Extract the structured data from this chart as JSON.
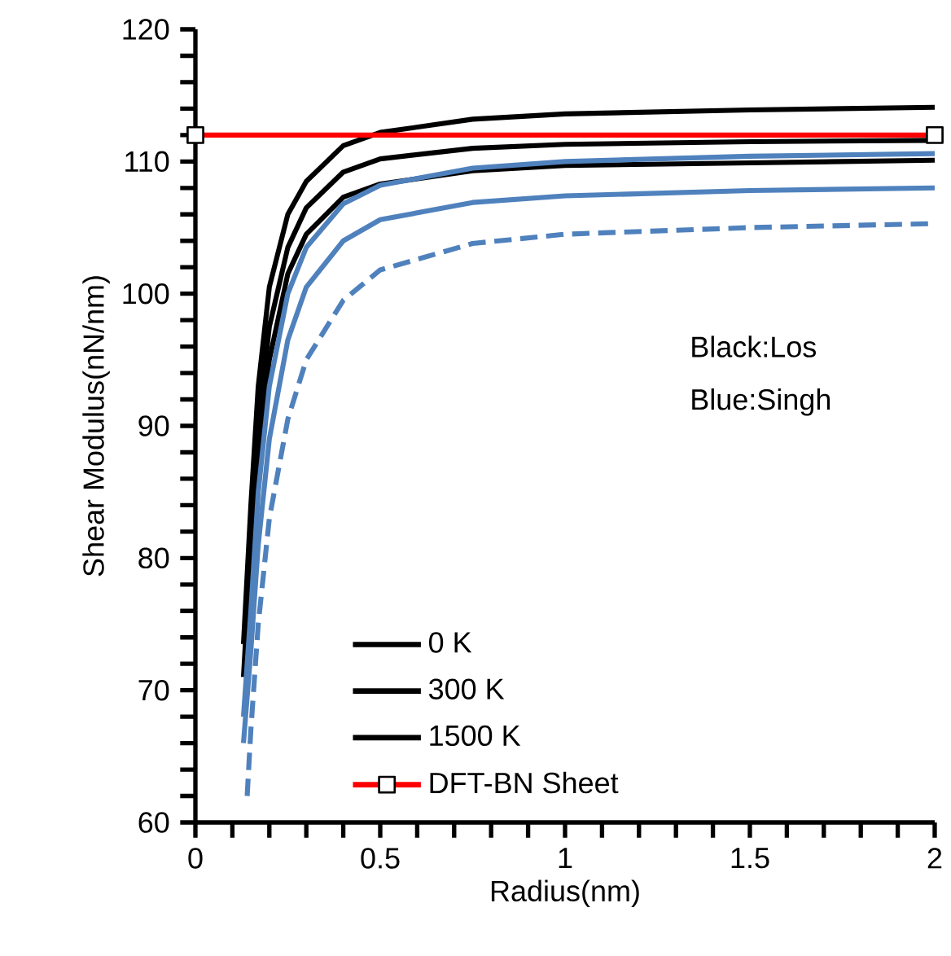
{
  "chart_data": {
    "type": "line",
    "xlabel": "Radius(nm)",
    "ylabel": "Shear Modulus(nN/nm)",
    "xlim": [
      0,
      2
    ],
    "ylim": [
      60,
      120
    ],
    "xticks": [
      0,
      {
        "value": 0.1,
        "label": null
      },
      {
        "value": 0.2,
        "label": null
      },
      {
        "value": 0.3,
        "label": null
      },
      {
        "value": 0.4,
        "label": null
      },
      0.5,
      {
        "value": 0.6,
        "label": null
      },
      {
        "value": 0.7,
        "label": null
      },
      {
        "value": 0.8,
        "label": null
      },
      {
        "value": 0.9,
        "label": null
      },
      1,
      {
        "value": 1.1,
        "label": null
      },
      {
        "value": 1.2,
        "label": null
      },
      {
        "value": 1.3,
        "label": null
      },
      {
        "value": 1.4,
        "label": null
      },
      1.5,
      {
        "value": 1.6,
        "label": null
      },
      {
        "value": 1.7,
        "label": null
      },
      {
        "value": 1.8,
        "label": null
      },
      {
        "value": 1.9,
        "label": null
      },
      2
    ],
    "yticks": [
      60,
      {
        "value": 62,
        "label": null
      },
      {
        "value": 64,
        "label": null
      },
      {
        "value": 66,
        "label": null
      },
      {
        "value": 68,
        "label": null
      },
      70,
      {
        "value": 72,
        "label": null
      },
      {
        "value": 74,
        "label": null
      },
      {
        "value": 76,
        "label": null
      },
      {
        "value": 78,
        "label": null
      },
      80,
      {
        "value": 82,
        "label": null
      },
      {
        "value": 84,
        "label": null
      },
      {
        "value": 86,
        "label": null
      },
      {
        "value": 88,
        "label": null
      },
      90,
      {
        "value": 92,
        "label": null
      },
      {
        "value": 94,
        "label": null
      },
      {
        "value": 96,
        "label": null
      },
      {
        "value": 98,
        "label": null
      },
      100,
      {
        "value": 102,
        "label": null
      },
      {
        "value": 104,
        "label": null
      },
      {
        "value": 106,
        "label": null
      },
      {
        "value": 108,
        "label": null
      },
      110,
      {
        "value": 112,
        "label": null
      },
      {
        "value": 114,
        "label": null
      },
      {
        "value": 116,
        "label": null
      },
      {
        "value": 118,
        "label": null
      },
      120
    ],
    "grid": false,
    "legend": "bottom left",
    "annotations": [
      "Black:Los",
      "Blue:Singh"
    ],
    "series": [
      {
        "name": "0 K",
        "color": "#000000",
        "x": [
          0.13,
          0.15,
          0.17,
          0.2,
          0.25,
          0.3,
          0.4,
          0.5,
          0.75,
          1,
          1.5,
          2
        ],
        "values": [
          73.5,
          84,
          93,
          100.5,
          106,
          108.5,
          111.2,
          112.2,
          113.2,
          113.6,
          113.9,
          114.1
        ]
      },
      {
        "name": "300 K",
        "color": "#000000",
        "x": [
          0.13,
          0.15,
          0.17,
          0.2,
          0.25,
          0.3,
          0.4,
          0.5,
          0.75,
          1,
          1.5,
          2
        ],
        "values": [
          71,
          81,
          90,
          97.5,
          103.5,
          106.5,
          109.2,
          110.2,
          111,
          111.3,
          111.5,
          111.6
        ]
      },
      {
        "name": "1500 K",
        "color": "#000000",
        "x": [
          0.15,
          0.17,
          0.2,
          0.25,
          0.3,
          0.4,
          0.5,
          0.75,
          1,
          1.5,
          2
        ],
        "values": [
          78,
          87,
          95,
          101.5,
          104.5,
          107.3,
          108.3,
          109.3,
          109.7,
          109.9,
          110.1
        ]
      },
      {
        "name": "DFT-BN Sheet",
        "color": "#ff0000",
        "marker": "square",
        "x": [
          0,
          2
        ],
        "values": [
          112,
          112
        ]
      },
      {
        "color": "#4f81bd",
        "x": [
          0.13,
          0.15,
          0.17,
          0.2,
          0.25,
          0.3,
          0.4,
          0.5,
          0.75,
          1,
          1.5,
          2
        ],
        "values": [
          68,
          76,
          85,
          93,
          100,
          103.5,
          106.8,
          108.2,
          109.5,
          110,
          110.4,
          110.6
        ]
      },
      {
        "color": "#4f81bd",
        "x": [
          0.13,
          0.15,
          0.17,
          0.2,
          0.25,
          0.3,
          0.4,
          0.5,
          0.75,
          1,
          1.5,
          2
        ],
        "values": [
          66,
          73,
          81,
          89,
          96.5,
          100.5,
          104,
          105.6,
          106.9,
          107.4,
          107.8,
          108
        ]
      },
      {
        "color": "#4f81bd",
        "line_style": "dashed",
        "x": [
          0.14,
          0.15,
          0.17,
          0.2,
          0.25,
          0.3,
          0.4,
          0.5,
          0.75,
          1,
          1.5,
          2
        ],
        "values": [
          62,
          67,
          75,
          83,
          90.5,
          95,
          99.5,
          101.8,
          103.8,
          104.5,
          105,
          105.3
        ]
      }
    ]
  }
}
